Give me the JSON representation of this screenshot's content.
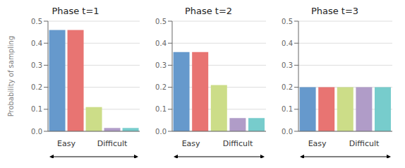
{
  "chart_data": [
    {
      "type": "bar",
      "title": "Phase t=1",
      "ylabel": "Probability of sampling",
      "categories": [
        null,
        null,
        null,
        null,
        null
      ],
      "groups": [
        "Easy",
        "Easy",
        "Difficult",
        "Difficult",
        "Difficult"
      ],
      "values": [
        0.46,
        0.46,
        0.11,
        0.015,
        0.015
      ],
      "colors": [
        "#6699CC",
        "#E87472",
        "#CCDD88",
        "#B09CC8",
        "#77CCCC"
      ],
      "ylim": [
        0,
        0.5
      ],
      "yticks": [
        {
          "value": 0,
          "label": "0.0"
        },
        0.1,
        0.2,
        0.3,
        0.4,
        0.5
      ],
      "grid": true,
      "tick_labels": "y"
    },
    {
      "type": "bar",
      "title": "Phase t=2",
      "categories": [
        null,
        null,
        null,
        null,
        null
      ],
      "groups": [
        "Easy",
        "Easy",
        "Difficult",
        "Difficult",
        "Difficult"
      ],
      "values": [
        0.36,
        0.36,
        0.21,
        0.06,
        0.06
      ],
      "colors": [
        "#6699CC",
        "#E87472",
        "#CCDD88",
        "#B09CC8",
        "#77CCCC"
      ],
      "ylim": [
        0,
        0.5
      ],
      "yticks": [
        {
          "value": 0,
          "label": "0.0"
        },
        0.1,
        0.2,
        0.3,
        0.4,
        0.5
      ],
      "grid": true,
      "tick_labels": "y"
    },
    {
      "type": "bar",
      "title": "Phase t=3",
      "categories": [
        null,
        null,
        null,
        null,
        null
      ],
      "groups": [
        "Easy",
        "Easy",
        "Difficult",
        "Difficult",
        "Difficult"
      ],
      "values": [
        0.2,
        0.2,
        0.2,
        0.2,
        0.2
      ],
      "colors": [
        "#6699CC",
        "#E87472",
        "#CCDD88",
        "#B09CC8",
        "#77CCCC"
      ],
      "ylim": [
        0,
        0.5
      ],
      "yticks": [
        {
          "value": 0,
          "label": "0.0"
        },
        0.1,
        0.2,
        0.3,
        0.4,
        0.5
      ],
      "grid": true,
      "tick_labels": "y"
    }
  ]
}
